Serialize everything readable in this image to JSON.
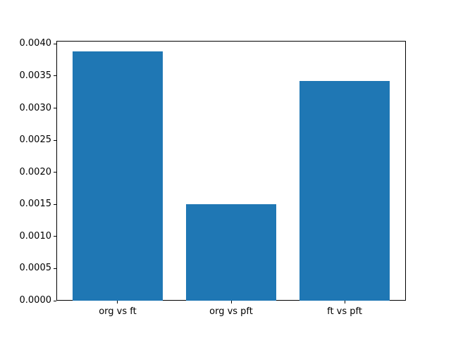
{
  "chart_data": {
    "type": "bar",
    "title": "",
    "xlabel": "",
    "ylabel": "",
    "categories": [
      "org vs ft",
      "org vs pft",
      "ft vs pft"
    ],
    "values": [
      0.00388,
      0.0015,
      0.00342
    ],
    "bar_color": "#1f77b4",
    "ylim": [
      0,
      0.004048
    ],
    "yticks": [
      0.0,
      0.0005,
      0.001,
      0.0015,
      0.002,
      0.0025,
      0.003,
      0.0035,
      0.004
    ],
    "ytick_decimals": 4,
    "grid": false,
    "legend": "none",
    "spine_color": "#000000",
    "text_color": "#000000",
    "background_color": "#ffffff"
  }
}
